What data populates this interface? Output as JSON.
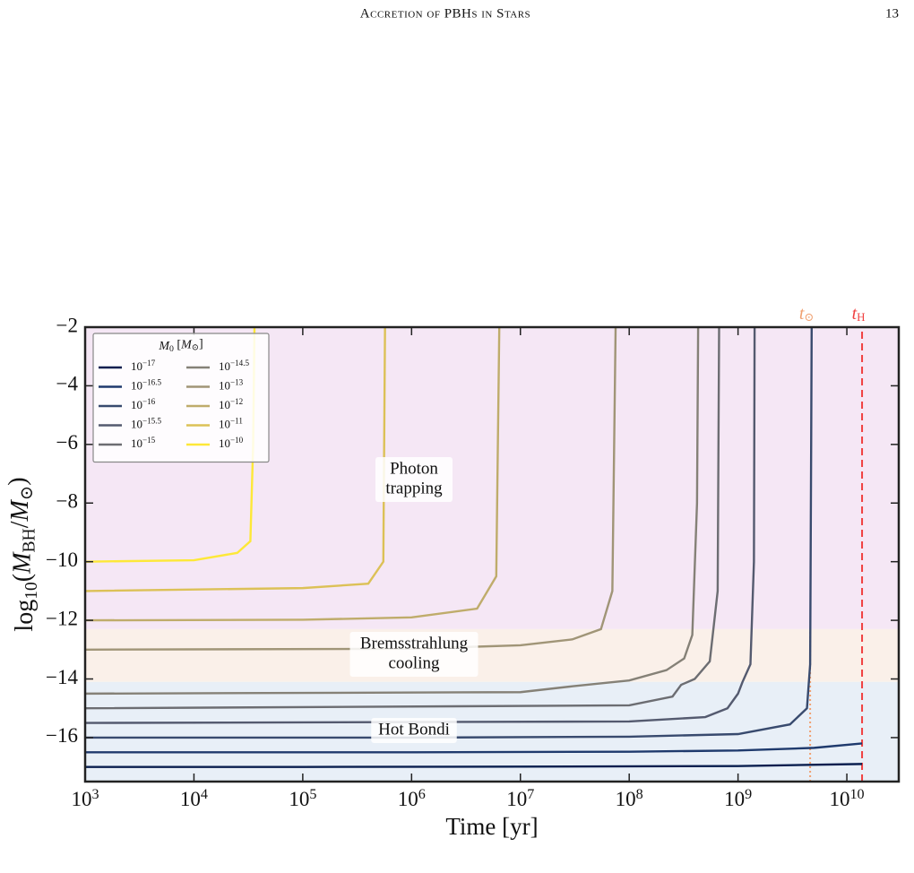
{
  "header": {
    "title": "Accretion of PBHs in Stars",
    "page_number": "13"
  },
  "chart_data": {
    "type": "line",
    "xlabel": "Time [yr]",
    "ylabel": [
      {
        "text": "log"
      },
      {
        "text": "10",
        "sub": true
      },
      {
        "text": "("
      },
      {
        "text": "M",
        "italic": true
      },
      {
        "text": "BH",
        "sub": true
      },
      {
        "text": "/"
      },
      {
        "text": "M",
        "italic": true
      },
      {
        "text": "⊙",
        "sub": true
      },
      {
        "text": ")"
      }
    ],
    "xscale": "log",
    "xlim": [
      1000,
      30000000000
    ],
    "ylim": [
      -17.5,
      -2
    ],
    "xticks": [
      {
        "value": 1000,
        "label": "10",
        "exponent": "3"
      },
      {
        "value": 10000,
        "label": "10",
        "exponent": "4"
      },
      {
        "value": 100000,
        "label": "10",
        "exponent": "5"
      },
      {
        "value": 1000000,
        "label": "10",
        "exponent": "6"
      },
      {
        "value": 10000000,
        "label": "10",
        "exponent": "7"
      },
      {
        "value": 100000000,
        "label": "10",
        "exponent": "8"
      },
      {
        "value": 1000000000,
        "label": "10",
        "exponent": "9"
      },
      {
        "value": 10000000000,
        "label": "10",
        "exponent": "10"
      }
    ],
    "yticks": [
      {
        "value": -2,
        "label": "−2"
      },
      {
        "value": -4,
        "label": "−4"
      },
      {
        "value": -6,
        "label": "−6"
      },
      {
        "value": -8,
        "label": "−8"
      },
      {
        "value": -10,
        "label": "−10"
      },
      {
        "value": -12,
        "label": "−12"
      },
      {
        "value": -14,
        "label": "−14"
      },
      {
        "value": -16,
        "label": "−16"
      }
    ],
    "regions": [
      {
        "label": [
          "Photon",
          "trapping"
        ],
        "y": [
          -12.3,
          -2
        ],
        "fill": "#f5e7f5",
        "color": "#a8169a"
      },
      {
        "label": [
          "Bremsstrahlung",
          "cooling"
        ],
        "y": [
          -14.1,
          -12.3
        ],
        "fill": "#faf0e9",
        "color": "#cc6a0a"
      },
      {
        "label": [
          "Hot Bondi"
        ],
        "y": [
          -17.5,
          -14.1
        ],
        "fill": "#e8eff7",
        "color": "#1a67a0"
      }
    ],
    "vlines": [
      {
        "label": "t",
        "sub": "⊙",
        "x": 4600000000,
        "y_top": -12.3,
        "color": "#f0a070",
        "dash": "2,3"
      },
      {
        "label": "t",
        "sub": "H",
        "x": 13800000000,
        "y_top": -2,
        "color": "#f04040",
        "dash": "8,5"
      }
    ],
    "legend": {
      "title": [
        {
          "text": "M",
          "italic": true
        },
        {
          "text": "0",
          "sub": true
        },
        {
          "text": " ["
        },
        {
          "text": "M",
          "italic": true
        },
        {
          "text": "⊙",
          "sub": true
        },
        {
          "text": "]"
        }
      ],
      "location": "upper left",
      "columns": 2
    },
    "series": [
      {
        "name": "10",
        "name_exponent": "−17",
        "color": "#0a1f4f",
        "x": [
          1000,
          100000,
          10000000,
          1000000000,
          13800000000
        ],
        "values": [
          -17,
          -17,
          -16.99,
          -16.97,
          -16.9
        ]
      },
      {
        "name": "10",
        "name_exponent": "−16.5",
        "color": "#1f3a6d",
        "x": [
          1000,
          1000000,
          100000000,
          1000000000,
          5000000000,
          13800000000
        ],
        "values": [
          -16.5,
          -16.5,
          -16.48,
          -16.44,
          -16.35,
          -16.2
        ]
      },
      {
        "name": "10",
        "name_exponent": "−16",
        "color": "#384a6e",
        "x": [
          1000,
          1000000,
          100000000,
          1000000000,
          3000000000,
          4300000000,
          4600000000,
          4700000000,
          4750000000
        ],
        "values": [
          -16,
          -16,
          -15.97,
          -15.88,
          -15.55,
          -15,
          -13.5,
          -6,
          -2
        ]
      },
      {
        "name": "10",
        "name_exponent": "−15.5",
        "color": "#545a6f",
        "x": [
          1000,
          100000000,
          500000000,
          800000000,
          1000000000,
          1100000000,
          1300000000,
          1400000000,
          1420000000
        ],
        "values": [
          -15.5,
          -15.45,
          -15.3,
          -15,
          -14.5,
          -14.1,
          -13.5,
          -10,
          -2
        ]
      },
      {
        "name": "10",
        "name_exponent": "−15",
        "color": "#6c6d72",
        "x": [
          1000,
          100000000,
          250000000,
          300000000,
          400000000,
          550000000,
          650000000,
          670000000
        ],
        "values": [
          -15,
          -14.9,
          -14.6,
          -14.2,
          -14,
          -13.4,
          -11,
          -2
        ]
      },
      {
        "name": "10",
        "name_exponent": "−14.5",
        "color": "#858177",
        "x": [
          1000,
          10000000,
          30000000,
          100000000,
          220000000,
          320000000,
          380000000,
          420000000,
          430000000
        ],
        "values": [
          -14.5,
          -14.45,
          -14.25,
          -14.05,
          -13.7,
          -13.3,
          -12.5,
          -8,
          -2
        ]
      },
      {
        "name": "10",
        "name_exponent": "−13",
        "color": "#a09577",
        "x": [
          1000,
          1000000,
          10000000,
          30000000,
          55000000,
          70000000,
          75000000
        ],
        "values": [
          -13,
          -12.97,
          -12.85,
          -12.65,
          -12.3,
          -11,
          -2
        ]
      },
      {
        "name": "10",
        "name_exponent": "−12",
        "color": "#bfac6b",
        "x": [
          1000,
          100000,
          1000000,
          4000000,
          6000000,
          6400000
        ],
        "values": [
          -12,
          -11.98,
          -11.9,
          -11.6,
          -10.5,
          -2
        ]
      },
      {
        "name": "10",
        "name_exponent": "−11",
        "color": "#dcc157",
        "x": [
          1000,
          100000,
          400000,
          550000,
          570000
        ],
        "values": [
          -11,
          -10.9,
          -10.75,
          -10,
          -2
        ]
      },
      {
        "name": "10",
        "name_exponent": "−10",
        "color": "#fde838",
        "x": [
          1000,
          10000,
          25000,
          33000,
          35000,
          36000
        ],
        "values": [
          -10,
          -9.95,
          -9.7,
          -9.3,
          -6,
          -2
        ]
      }
    ]
  }
}
